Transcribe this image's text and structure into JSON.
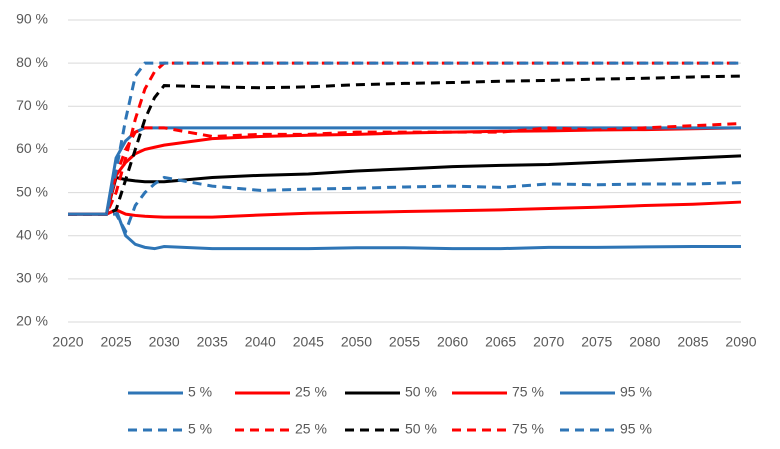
{
  "chart_data": {
    "type": "line",
    "x": [
      2020,
      2024,
      2025,
      2026,
      2027,
      2028,
      2029,
      2030,
      2035,
      2040,
      2045,
      2050,
      2055,
      2060,
      2065,
      2070,
      2075,
      2080,
      2085,
      2090
    ],
    "xlim": [
      2020,
      2090
    ],
    "xticks": [
      2020,
      2025,
      2030,
      2035,
      2040,
      2045,
      2050,
      2055,
      2060,
      2065,
      2070,
      2075,
      2080,
      2085,
      2090
    ],
    "ylim": [
      20,
      90
    ],
    "yticks": [
      {
        "value": 20,
        "label": "20 %"
      },
      {
        "value": 30,
        "label": "30 %"
      },
      {
        "value": 40,
        "label": "40 %"
      },
      {
        "value": 50,
        "label": "50 %"
      },
      {
        "value": 60,
        "label": "60 %"
      },
      {
        "value": 70,
        "label": "70 %"
      },
      {
        "value": 80,
        "label": "80 %"
      },
      {
        "value": 90,
        "label": "90 %"
      }
    ],
    "grid": true,
    "legend": "bottom",
    "series": [
      {
        "name": "5 %",
        "color": "#2e75b6",
        "dashed": false,
        "values": [
          45,
          45,
          46,
          40,
          38,
          37.3,
          37,
          37.5,
          37,
          37,
          37,
          37.2,
          37.2,
          37,
          37,
          37.3,
          37.3,
          37.4,
          37.5,
          37.5
        ]
      },
      {
        "name": "25 %",
        "color": "#ff0000",
        "dashed": false,
        "values": [
          45,
          45,
          46,
          45,
          44.7,
          44.5,
          44.4,
          44.3,
          44.3,
          44.8,
          45.2,
          45.4,
          45.6,
          45.8,
          46,
          46.3,
          46.6,
          47,
          47.3,
          47.8
        ]
      },
      {
        "name": "50 %",
        "color": "#000000",
        "dashed": false,
        "values": [
          45,
          45,
          53.5,
          53,
          52.7,
          52.5,
          52.5,
          52.5,
          53.5,
          54,
          54.3,
          55,
          55.5,
          56,
          56.3,
          56.5,
          57,
          57.5,
          58,
          58.5
        ]
      },
      {
        "name": "75 %",
        "color": "#ff0000",
        "dashed": false,
        "values": [
          45,
          45,
          54,
          57,
          59,
          60,
          60.5,
          61,
          62.5,
          63,
          63.3,
          63.5,
          63.8,
          64,
          64.2,
          64.3,
          64.5,
          64.6,
          64.8,
          65
        ]
      },
      {
        "name": "95 %",
        "color": "#2e75b6",
        "dashed": false,
        "values": [
          45,
          45,
          58,
          62,
          64,
          65,
          65,
          65,
          65,
          65,
          65,
          65,
          65,
          65,
          65,
          65,
          65,
          65,
          65,
          65
        ]
      },
      {
        "name": "5 %",
        "color": "#2e75b6",
        "dashed": true,
        "values": [
          45,
          45,
          45,
          41,
          47,
          50,
          52,
          53.5,
          51.5,
          50.5,
          50.8,
          51,
          51.3,
          51.5,
          51.2,
          52,
          51.8,
          52,
          52,
          52.3
        ]
      },
      {
        "name": "25 %",
        "color": "#ff0000",
        "dashed": true,
        "values": [
          45,
          45,
          54,
          60,
          64,
          65,
          65,
          65,
          63,
          63.5,
          63.5,
          64,
          64,
          64,
          64,
          65,
          64.5,
          65,
          65.5,
          66
        ]
      },
      {
        "name": "50 %",
        "color": "#000000",
        "dashed": true,
        "values": [
          45,
          45,
          46,
          53,
          60,
          67,
          72,
          74.8,
          74.5,
          74.3,
          74.5,
          75,
          75.3,
          75.5,
          75.8,
          76,
          76.3,
          76.5,
          76.8,
          77
        ]
      },
      {
        "name": "75 %",
        "color": "#ff0000",
        "dashed": true,
        "values": [
          45,
          45,
          50,
          58,
          67,
          74,
          78,
          80,
          80,
          80,
          80,
          80,
          80,
          80,
          80,
          80,
          80,
          80,
          80,
          80
        ]
      },
      {
        "name": "95 %",
        "color": "#2e75b6",
        "dashed": true,
        "values": [
          45,
          45,
          55,
          67,
          77,
          80,
          80,
          80,
          80,
          80,
          80,
          80,
          80,
          80,
          80,
          80,
          80,
          80,
          80,
          80
        ]
      }
    ]
  }
}
